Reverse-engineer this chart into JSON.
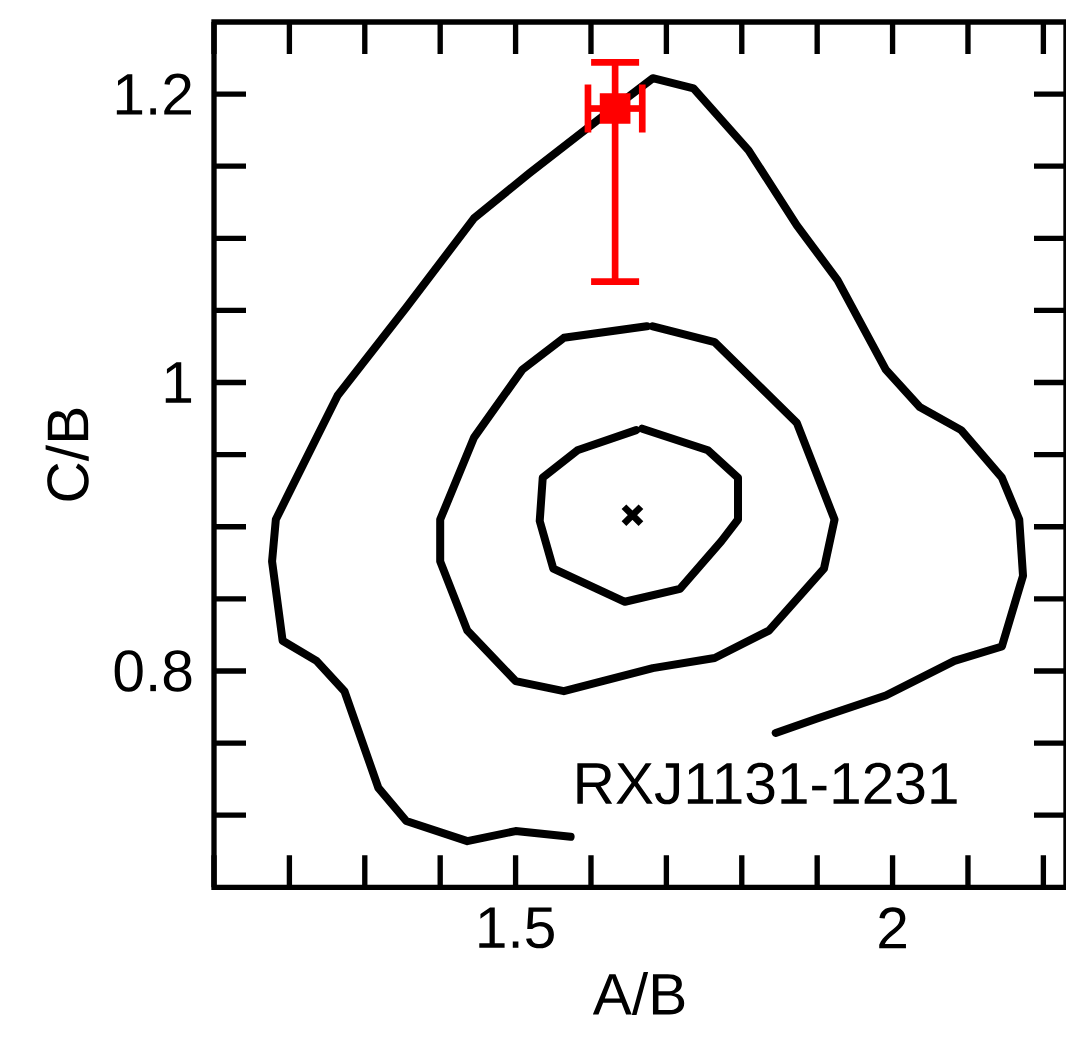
{
  "chart_data": {
    "type": "line",
    "xlabel": "A/B",
    "ylabel": "C/B",
    "xlim": [
      1.1,
      2.23
    ],
    "ylim": [
      0.65,
      1.25
    ],
    "xticks": [
      {
        "value": 1.1,
        "label": null
      },
      {
        "value": 1.2,
        "label": null
      },
      {
        "value": 1.3,
        "label": null
      },
      {
        "value": 1.4,
        "label": null
      },
      1.5,
      {
        "value": 1.6,
        "label": null
      },
      {
        "value": 1.7,
        "label": null
      },
      {
        "value": 1.8,
        "label": null
      },
      {
        "value": 1.9,
        "label": null
      },
      2,
      {
        "value": 2.1,
        "label": null
      },
      {
        "value": 2.2,
        "label": null
      }
    ],
    "yticks": [
      {
        "value": 0.7,
        "label": null
      },
      {
        "value": 0.75,
        "label": null
      },
      0.8,
      {
        "value": 0.85,
        "label": null
      },
      {
        "value": 0.9,
        "label": null
      },
      {
        "value": 0.95,
        "label": null
      },
      1,
      {
        "value": 1.05,
        "label": null
      },
      {
        "value": 1.1,
        "label": null
      },
      {
        "value": 1.15,
        "label": null
      },
      1.2
    ],
    "annotations": [
      "RXJ1131-1231"
    ],
    "series": [
      {
        "color": "#000000",
        "marker": "none",
        "line_style": "solid",
        "x": [
          1.668,
          1.755,
          1.795,
          1.795,
          1.773,
          1.718,
          1.645,
          1.55,
          1.532,
          1.536,
          1.582,
          1.66
        ],
        "values": [
          0.968,
          0.953,
          0.934,
          0.905,
          0.89,
          0.857,
          0.848,
          0.871,
          0.904,
          0.934,
          0.953,
          0.967
        ]
      },
      {
        "color": "#000000",
        "marker": "none",
        "line_style": "solid",
        "x": [
          1.682,
          1.764,
          1.873,
          1.923,
          1.909,
          1.836,
          1.764,
          1.682,
          1.564,
          1.5,
          1.436,
          1.4,
          1.4,
          1.445,
          1.509,
          1.564,
          1.674
        ],
        "values": [
          1.039,
          1.028,
          0.972,
          0.905,
          0.871,
          0.828,
          0.809,
          0.802,
          0.786,
          0.793,
          0.828,
          0.876,
          0.905,
          0.962,
          1.009,
          1.031,
          1.039
        ]
      },
      {
        "color": "#000000",
        "marker": "none",
        "line_style": "solid",
        "x": [
          1.573,
          1.5,
          1.436,
          1.355,
          1.318,
          1.273,
          1.236,
          1.191,
          1.177,
          1.182,
          1.2,
          1.264,
          1.355,
          1.445,
          1.518,
          1.609,
          1.682,
          1.736,
          1.809,
          1.873,
          1.927,
          1.991,
          2.036,
          2.091,
          2.145,
          2.168,
          2.173,
          2.145,
          2.082,
          1.991,
          1.9,
          1.845
        ],
        "values": [
          0.685,
          0.689,
          0.682,
          0.696,
          0.719,
          0.786,
          0.807,
          0.821,
          0.876,
          0.905,
          0.924,
          0.991,
          1.052,
          1.114,
          1.145,
          1.182,
          1.211,
          1.204,
          1.161,
          1.109,
          1.071,
          1.009,
          0.983,
          0.967,
          0.934,
          0.905,
          0.866,
          0.817,
          0.807,
          0.783,
          0.767,
          0.757
        ]
      },
      {
        "type": "scatter",
        "color": "#000000",
        "marker": "cross",
        "x": [
          1.655
        ],
        "values": [
          0.908
        ]
      },
      {
        "type": "scatter",
        "color": "#ff0000",
        "marker": "square",
        "x": [
          1.632
        ],
        "values": [
          1.19
        ],
        "errors": [
          [
            1.07,
            1.222
          ]
        ],
        "xerrors": [
          0.036
        ]
      }
    ]
  }
}
